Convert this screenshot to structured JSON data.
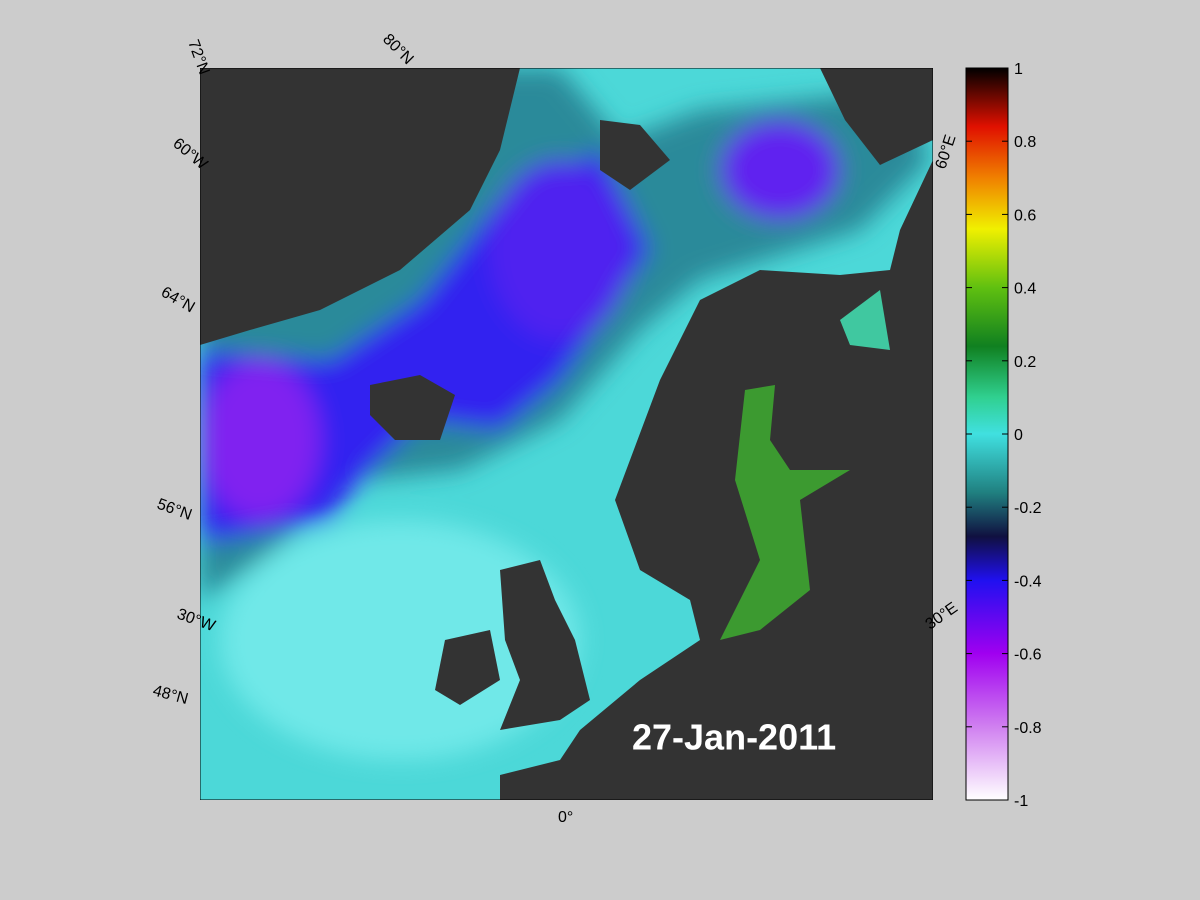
{
  "map": {
    "grid_labels": [
      "72°N",
      "80°N",
      "60°W",
      "64°N",
      "56°N",
      "30°W",
      "48°N",
      "0°",
      "30°E",
      "60°E"
    ],
    "date": "27-Jan-2011"
  },
  "colorbar": {
    "lim": [
      -1,
      1
    ],
    "ticks": [
      1,
      0.8,
      0.6,
      0.4,
      0.2,
      0,
      -0.2,
      -0.4,
      -0.6,
      -0.8,
      -1
    ]
  }
}
